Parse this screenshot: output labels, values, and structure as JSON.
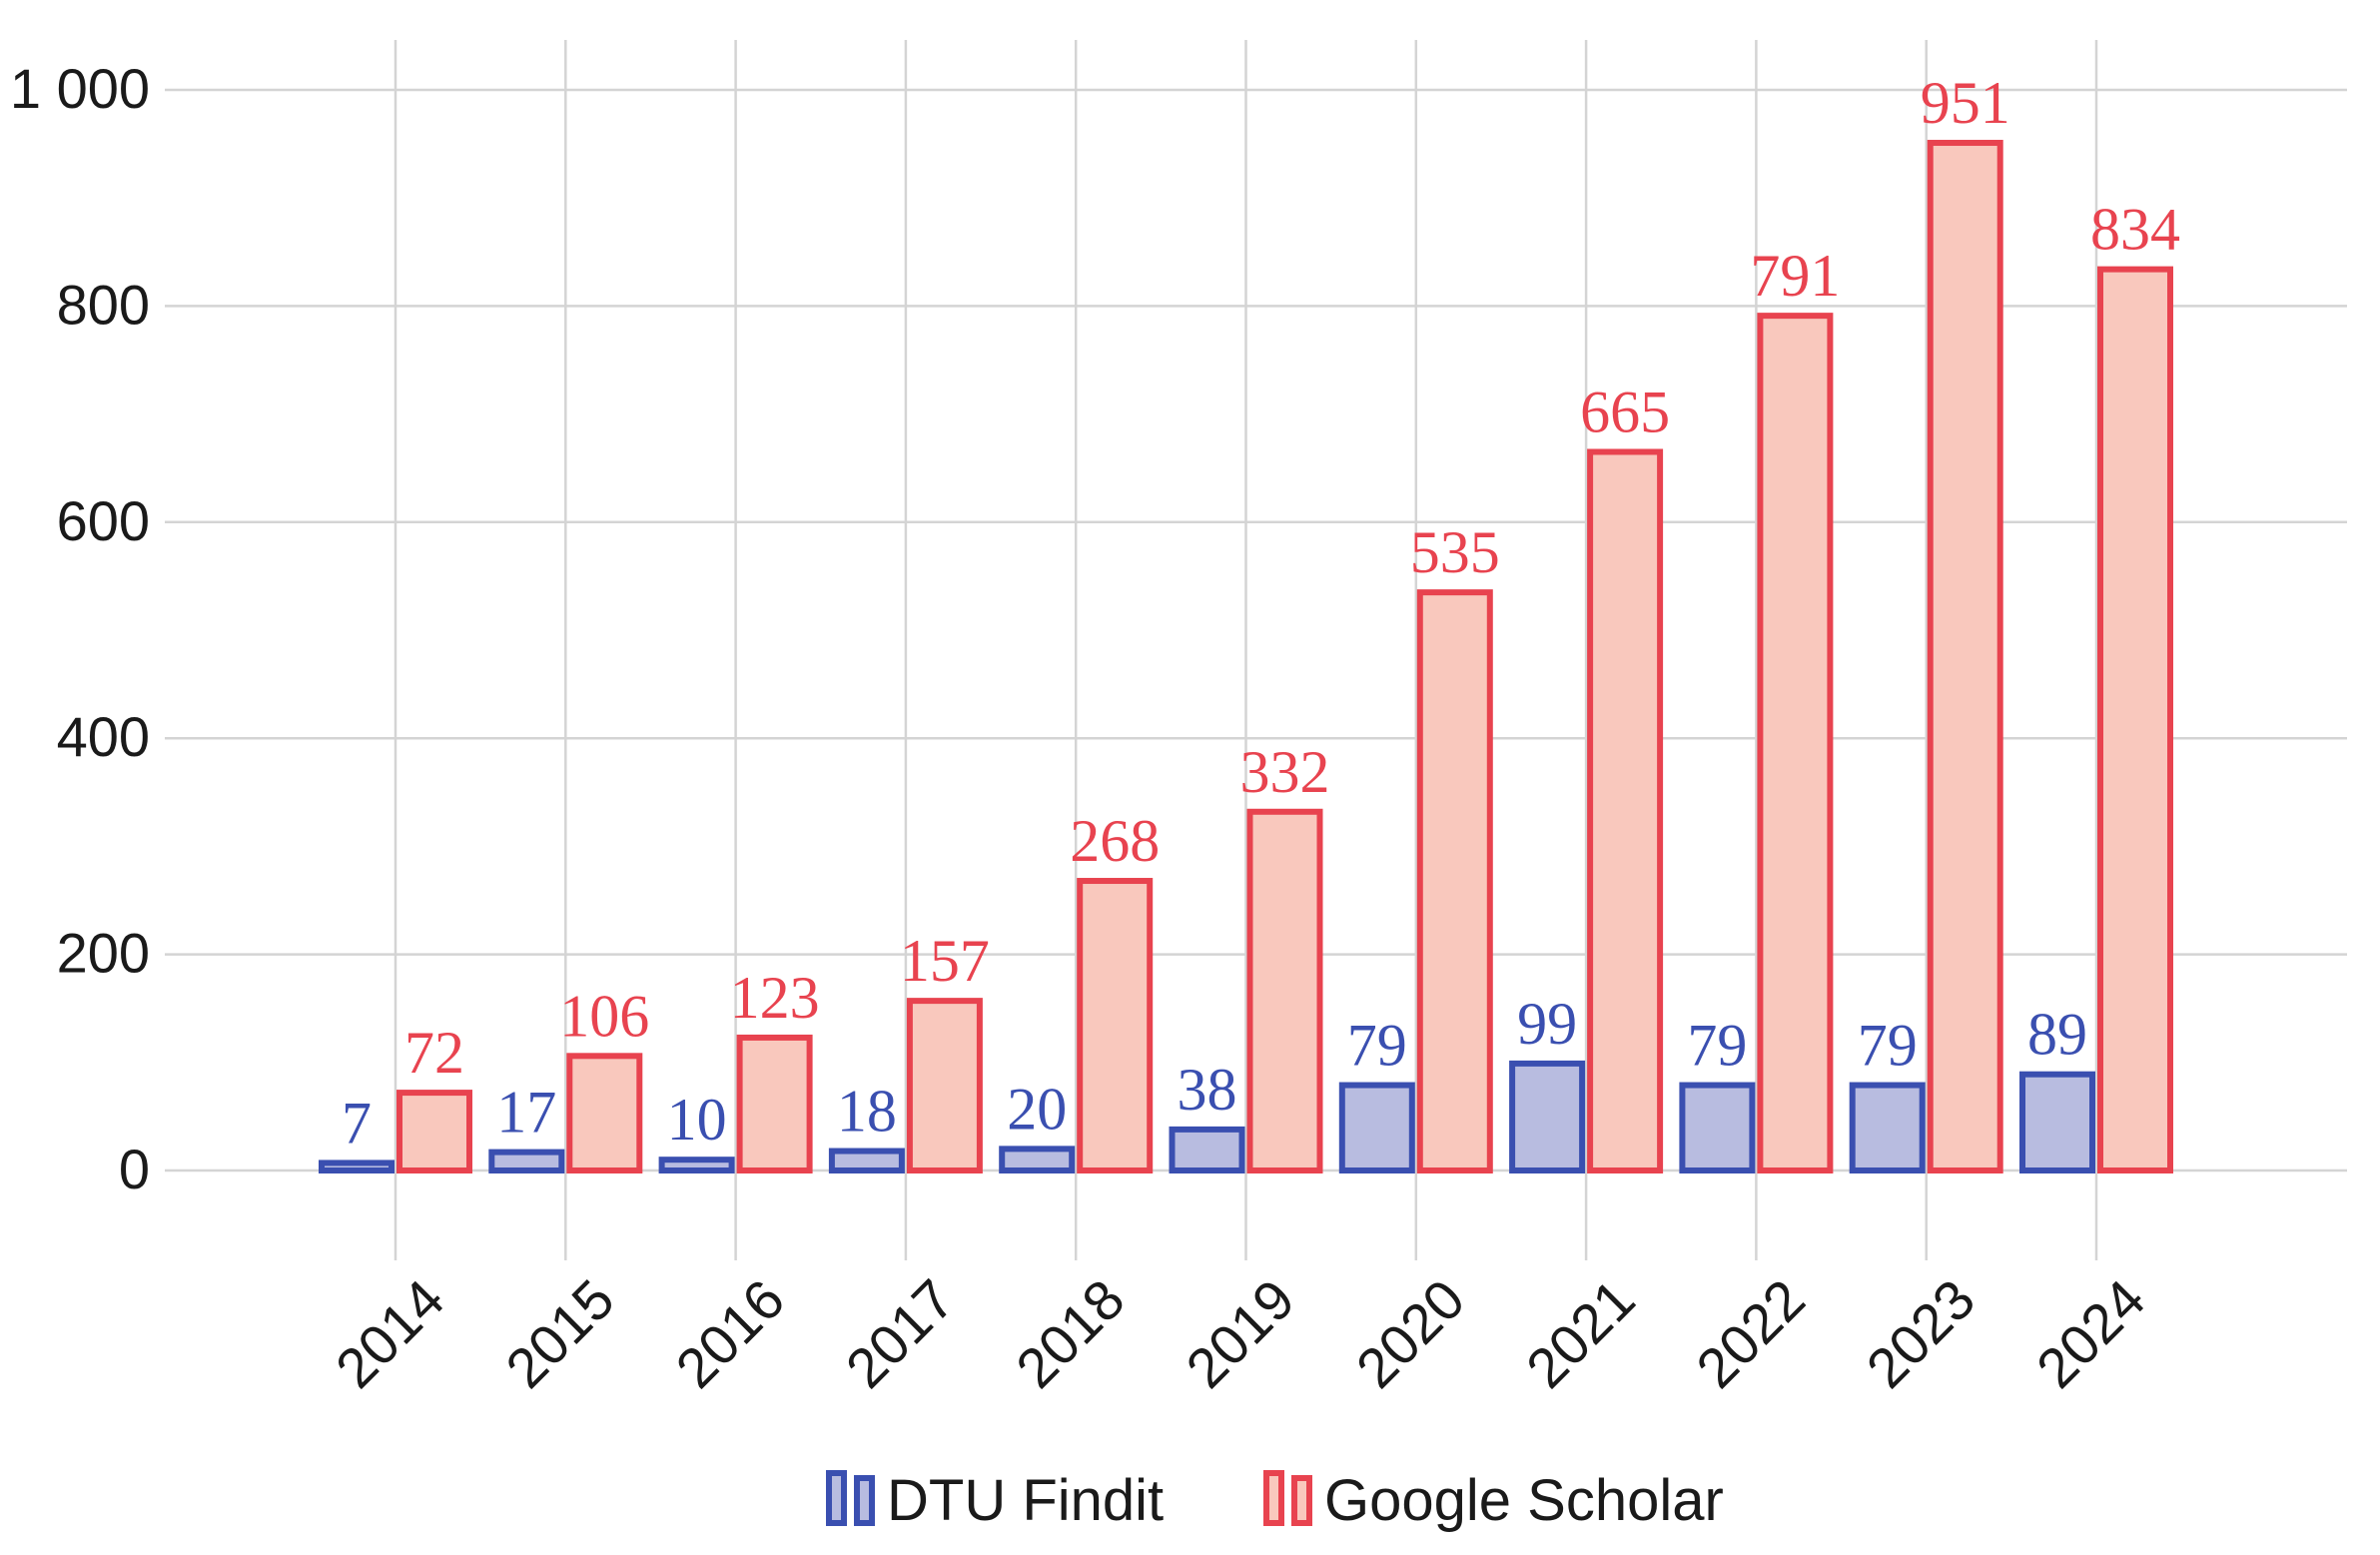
{
  "chart_data": {
    "type": "bar",
    "title": "",
    "xlabel": "",
    "ylabel": "",
    "categories": [
      "2014",
      "2015",
      "2016",
      "2017",
      "2018",
      "2019",
      "2020",
      "2021",
      "2022",
      "2023",
      "2024"
    ],
    "series": [
      {
        "name": "DTU Findit",
        "values": [
          7,
          17,
          10,
          18,
          20,
          38,
          79,
          99,
          79,
          79,
          89
        ],
        "stroke": "#3a4fb0",
        "fill": "#b8bce0",
        "label_color": "#3a4fb0"
      },
      {
        "name": "Google Scholar",
        "values": [
          72,
          106,
          123,
          157,
          268,
          332,
          535,
          665,
          791,
          951,
          834
        ],
        "stroke": "#e8434f",
        "fill": "#f9c8bd",
        "label_color": "#e8434f"
      }
    ],
    "ylim": [
      -90,
      1050
    ],
    "yticks": [
      0,
      200,
      400,
      600,
      800,
      1000
    ],
    "ytick_labels": [
      "0",
      "200",
      "400",
      "600",
      "800",
      "1 000"
    ],
    "grid": true,
    "grid_color": "#d4d4d4",
    "legend_position": "bottom-center"
  }
}
